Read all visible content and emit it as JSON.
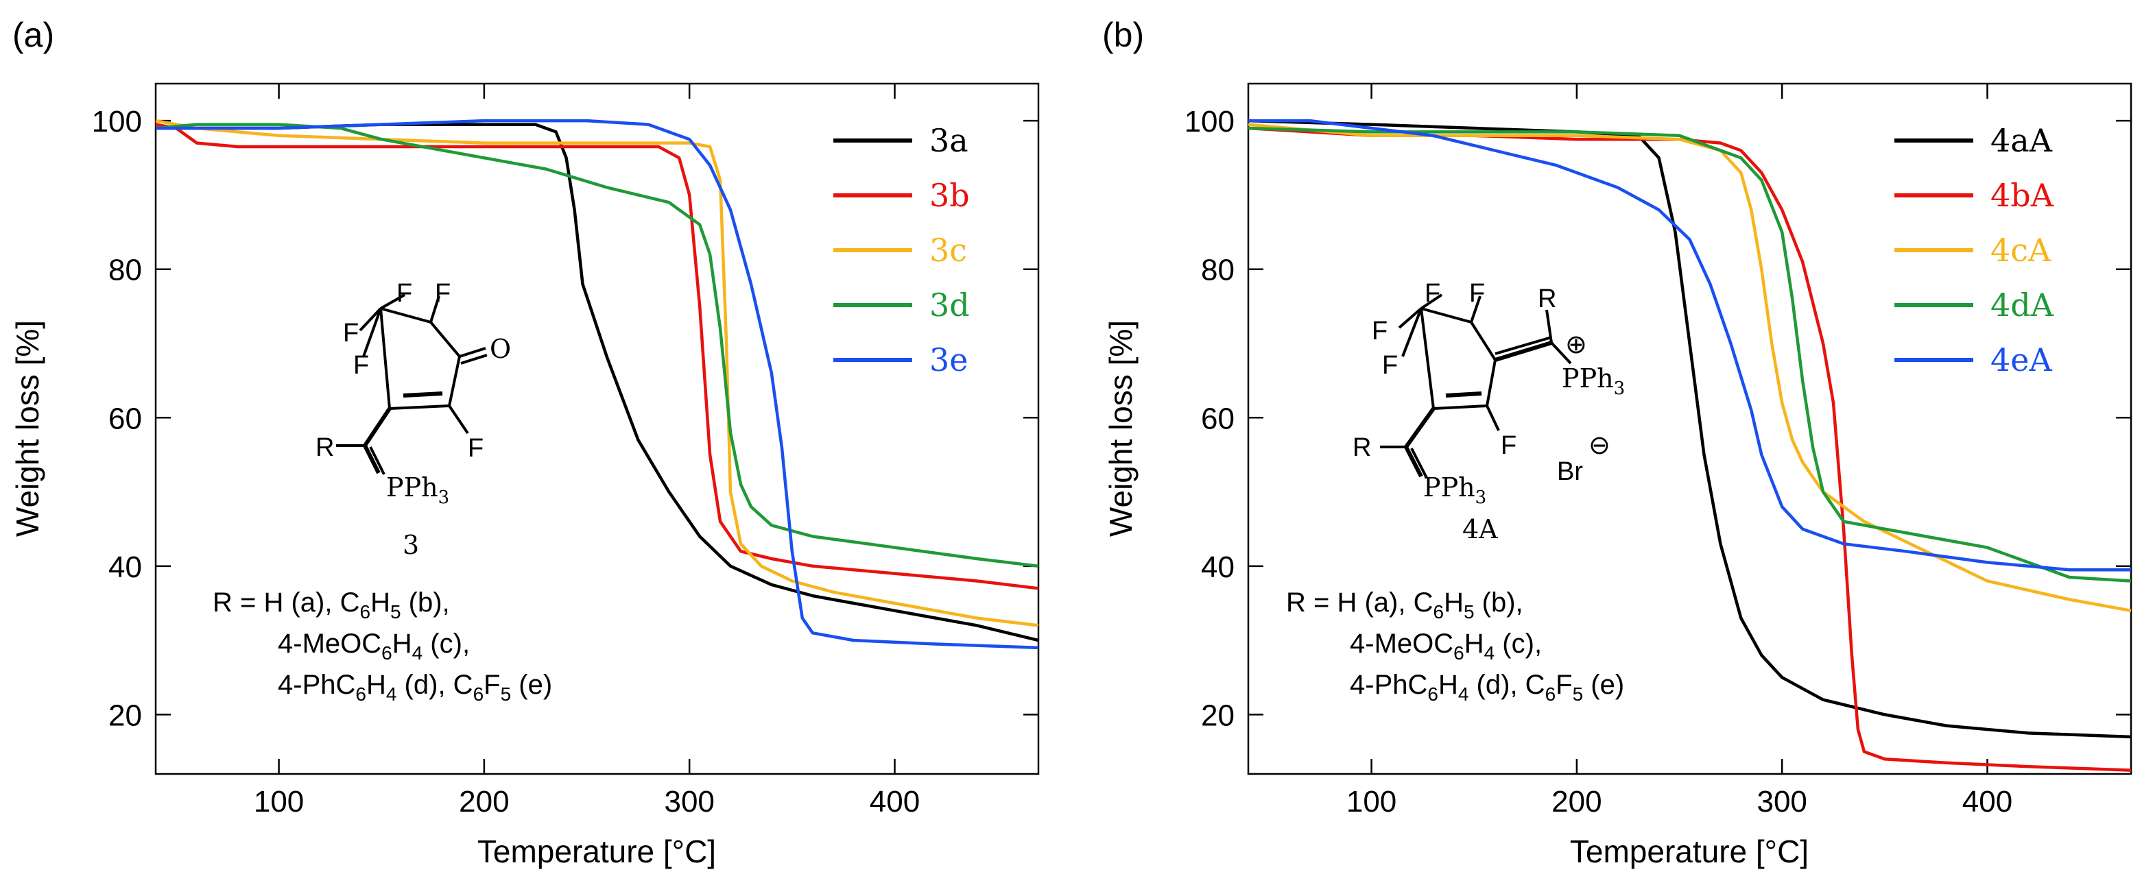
{
  "chart_data": [
    {
      "panel_label": "(a)",
      "type": "line",
      "xlabel": "Temperature [°C]",
      "ylabel": "Weight loss [%]",
      "xlim": [
        40,
        470
      ],
      "ylim": [
        12,
        105
      ],
      "xticks": [
        "100",
        "200",
        "300",
        "400"
      ],
      "yticks": [
        "20",
        "40",
        "60",
        "80",
        "100"
      ],
      "legend_position": "top-right",
      "series": [
        {
          "name": "3a",
          "color": "#000000",
          "x": [
            40,
            100,
            150,
            200,
            225,
            235,
            240,
            244,
            248,
            260,
            275,
            290,
            305,
            320,
            340,
            360,
            380,
            400,
            420,
            440,
            470
          ],
          "y": [
            99,
            99,
            99.5,
            99.5,
            99.5,
            98.5,
            95,
            88,
            78,
            68,
            57,
            50,
            44,
            40,
            37.5,
            36,
            35,
            34,
            33,
            32,
            30
          ]
        },
        {
          "name": "3b",
          "color": "#e8120c",
          "x": [
            40,
            50,
            60,
            80,
            150,
            200,
            250,
            285,
            295,
            300,
            305,
            310,
            315,
            325,
            340,
            360,
            400,
            440,
            470
          ],
          "y": [
            99.5,
            99,
            97,
            96.5,
            96.5,
            96.5,
            96.5,
            96.5,
            95,
            90,
            75,
            55,
            46,
            42,
            41,
            40,
            39,
            38,
            37
          ]
        },
        {
          "name": "3c",
          "color": "#f7b41b",
          "x": [
            40,
            60,
            80,
            100,
            150,
            200,
            250,
            300,
            310,
            315,
            318,
            320,
            325,
            335,
            350,
            370,
            400,
            440,
            470
          ],
          "y": [
            100,
            99,
            98.5,
            98,
            97.5,
            97,
            97,
            97,
            96.5,
            92,
            70,
            50,
            43,
            40,
            38,
            36.5,
            35,
            33,
            32
          ]
        },
        {
          "name": "3d",
          "color": "#1f9a38",
          "x": [
            40,
            60,
            100,
            130,
            150,
            170,
            200,
            230,
            260,
            290,
            305,
            310,
            315,
            320,
            325,
            330,
            340,
            360,
            400,
            440,
            470
          ],
          "y": [
            99,
            99.5,
            99.5,
            99,
            97.5,
            96.5,
            95,
            93.5,
            91,
            89,
            86,
            82,
            72,
            58,
            51,
            48,
            45.5,
            44,
            42.5,
            41,
            40
          ]
        },
        {
          "name": "3e",
          "color": "#1a4ff0",
          "x": [
            40,
            100,
            150,
            200,
            250,
            280,
            300,
            310,
            320,
            330,
            340,
            345,
            350,
            355,
            360,
            380,
            420,
            470
          ],
          "y": [
            99,
            99,
            99.5,
            100,
            100,
            99.5,
            97.5,
            94,
            88,
            78,
            66,
            56,
            42,
            33,
            31,
            30,
            29.5,
            29
          ]
        }
      ],
      "annotations": {
        "structure_label": "3",
        "atom_F1": "F",
        "atom_F2": "F",
        "atom_F3": "F",
        "atom_F4": "F",
        "atom_F5": "F",
        "atom_O": "O",
        "atom_R": "R",
        "atom_P": "PPh",
        "r_line1_prefix": "R = H (a), C",
        "r_line1_suffix": "H",
        "r_line1_end": " (b),",
        "r_line2_prefix": "4-MeOC",
        "r_line2_mid": "H",
        "r_line2_end": " (c),",
        "r_line3_prefix": "4-PhC",
        "r_line3_mid": "H",
        "r_line3_end": " (d), C",
        "r_line3_F": "F",
        "r_line3_close": " (e)",
        "sub_6": "6",
        "sub_5": "5",
        "sub_4": "4",
        "sub_3": "3"
      }
    },
    {
      "panel_label": "(b)",
      "type": "line",
      "xlabel": "Temperature [°C]",
      "ylabel": "Weight loss [%]",
      "xlim": [
        40,
        470
      ],
      "ylim": [
        12,
        105
      ],
      "xticks": [
        "100",
        "200",
        "300",
        "400"
      ],
      "yticks": [
        "20",
        "40",
        "60",
        "80",
        "100"
      ],
      "legend_position": "top-right",
      "series": [
        {
          "name": "4aA",
          "color": "#000000",
          "x": [
            40,
            100,
            150,
            200,
            230,
            240,
            248,
            255,
            262,
            270,
            280,
            290,
            300,
            320,
            350,
            380,
            420,
            470
          ],
          "y": [
            100,
            99.5,
            99,
            98.5,
            98,
            95,
            85,
            70,
            55,
            43,
            33,
            28,
            25,
            22,
            20,
            18.5,
            17.5,
            17
          ]
        },
        {
          "name": "4bA",
          "color": "#e8120c",
          "x": [
            40,
            100,
            150,
            200,
            250,
            270,
            280,
            290,
            300,
            310,
            320,
            325,
            330,
            334,
            337,
            340,
            350,
            380,
            420,
            470
          ],
          "y": [
            99,
            98,
            98,
            97.5,
            97.5,
            97,
            96,
            93,
            88,
            81,
            70,
            62,
            45,
            28,
            18,
            15,
            14,
            13.5,
            13,
            12.5
          ]
        },
        {
          "name": "4cA",
          "color": "#f7b41b",
          "x": [
            40,
            100,
            150,
            200,
            250,
            270,
            280,
            285,
            290,
            295,
            300,
            305,
            310,
            320,
            340,
            370,
            400,
            440,
            470
          ],
          "y": [
            99.5,
            98,
            98,
            98,
            97.5,
            96,
            93,
            88,
            80,
            70,
            62,
            57,
            54,
            50,
            46,
            42,
            38,
            35.5,
            34
          ]
        },
        {
          "name": "4dA",
          "color": "#1f9a38",
          "x": [
            40,
            100,
            150,
            200,
            250,
            280,
            290,
            300,
            305,
            310,
            315,
            320,
            330,
            350,
            380,
            400,
            420,
            440,
            470
          ],
          "y": [
            99,
            98.5,
            98.5,
            98.5,
            98,
            95,
            92,
            85,
            76,
            65,
            56,
            50,
            46,
            45,
            43.5,
            42.5,
            40.5,
            38.5,
            38
          ]
        },
        {
          "name": "4eA",
          "color": "#1a4ff0",
          "x": [
            40,
            70,
            100,
            130,
            160,
            190,
            220,
            240,
            255,
            265,
            275,
            285,
            290,
            300,
            310,
            330,
            360,
            400,
            440,
            470
          ],
          "y": [
            100,
            100,
            99,
            98,
            96,
            94,
            91,
            88,
            84,
            78,
            70,
            61,
            55,
            48,
            45,
            43,
            42,
            40.5,
            39.5,
            39.5
          ]
        }
      ],
      "annotations": {
        "structure_label": "4A",
        "atom_F1": "F",
        "atom_F2": "F",
        "atom_F3": "F",
        "atom_F4": "F",
        "atom_F5": "F",
        "atom_R_top": "R",
        "atom_R": "R",
        "atom_P_top": "PPh",
        "atom_P": "PPh",
        "plus": "⊕",
        "anion": "Br",
        "minus": "⊖",
        "r_line1_prefix": "R = H (a), C",
        "r_line1_suffix": "H",
        "r_line1_end": " (b),",
        "r_line2_prefix": "4-MeOC",
        "r_line2_mid": "H",
        "r_line2_end": " (c),",
        "r_line3_prefix": "4-PhC",
        "r_line3_mid": "H",
        "r_line3_end": " (d), C",
        "r_line3_F": "F",
        "r_line3_close": " (e)",
        "sub_6": "6",
        "sub_5": "5",
        "sub_4": "4",
        "sub_3": "3"
      }
    }
  ]
}
